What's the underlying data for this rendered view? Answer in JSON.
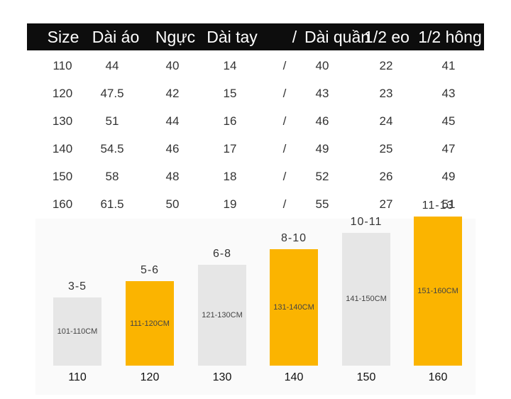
{
  "table": {
    "headers": [
      "Size",
      "Dài áo",
      "Ngực",
      "Dài tay",
      "/",
      "Dài quần",
      "1/2 eo",
      "1/2 hông"
    ],
    "rows": [
      [
        "110",
        "44",
        "40",
        "14",
        "/",
        "40",
        "22",
        "41"
      ],
      [
        "120",
        "47.5",
        "42",
        "15",
        "/",
        "43",
        "23",
        "43"
      ],
      [
        "130",
        "51",
        "44",
        "16",
        "/",
        "46",
        "24",
        "45"
      ],
      [
        "140",
        "54.5",
        "46",
        "17",
        "/",
        "49",
        "25",
        "47"
      ],
      [
        "150",
        "58",
        "48",
        "18",
        "/",
        "52",
        "26",
        "49"
      ],
      [
        "160",
        "61.5",
        "50",
        "19",
        "/",
        "55",
        "27",
        "51"
      ]
    ]
  },
  "chart_data": {
    "type": "bar",
    "categories": [
      "110",
      "120",
      "130",
      "140",
      "150",
      "160"
    ],
    "ages": [
      "3-5",
      "5-6",
      "6-8",
      "8-10",
      "10-11",
      "11-13"
    ],
    "height_ranges": [
      "101-110CM",
      "111-120CM",
      "121-130CM",
      "131-140CM",
      "141-150CM",
      "151-160CM"
    ],
    "values": [
      110,
      120,
      130,
      140,
      150,
      160
    ],
    "colors": {
      "gray": "#e6e6e6",
      "orange": "#fbb400"
    },
    "bar_colors": [
      "gray",
      "orange",
      "gray",
      "orange",
      "gray",
      "orange"
    ]
  }
}
